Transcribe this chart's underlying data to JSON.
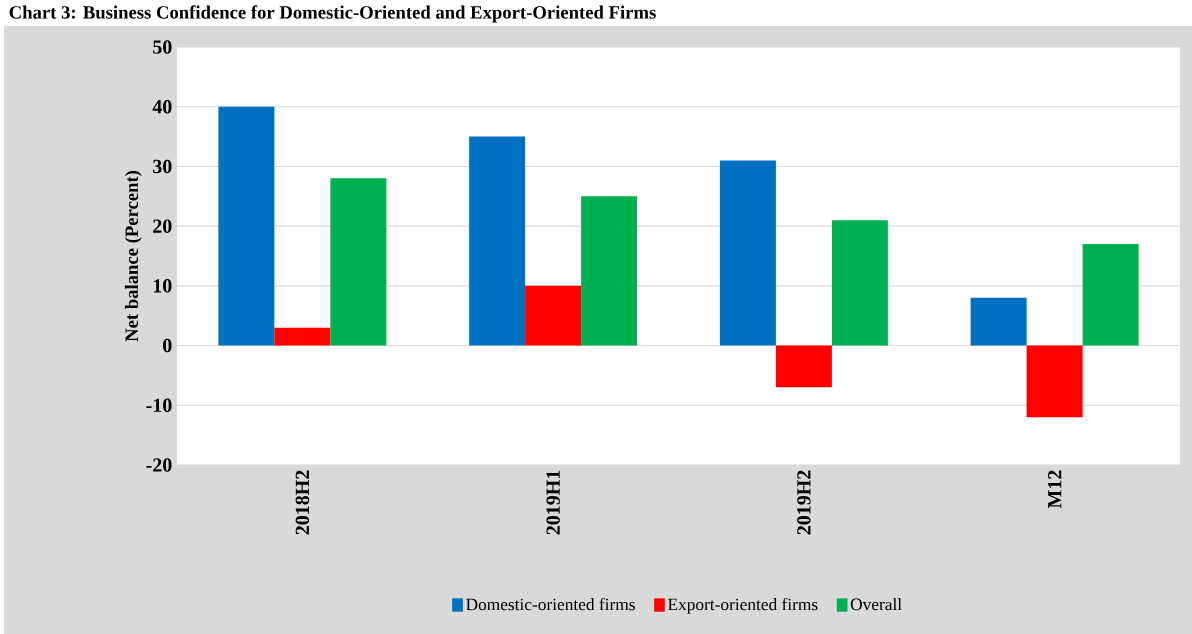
{
  "chart_data": {
    "type": "bar",
    "title": "Chart 3: Business Confidence for Domestic-Oriented and Export-Oriented Firms",
    "ylabel": "Net balance (Percent)",
    "categories": [
      "2018H2",
      "2019H1",
      "2019H2",
      "M12"
    ],
    "series": [
      {
        "name": "Domestic-oriented firms",
        "color": "#0070c0",
        "values": [
          40,
          35,
          31,
          8
        ]
      },
      {
        "name": "Export-oriented firms",
        "color": "#ff0000",
        "values": [
          3,
          10,
          -7,
          -12
        ]
      },
      {
        "name": "Overall",
        "color": "#00b050",
        "values": [
          28,
          25,
          21,
          17
        ]
      }
    ],
    "ylim": [
      -20,
      50
    ],
    "yticks": [
      -20,
      -10,
      0,
      10,
      20,
      30,
      40,
      50
    ],
    "grid": "y",
    "legend": "bottom"
  }
}
